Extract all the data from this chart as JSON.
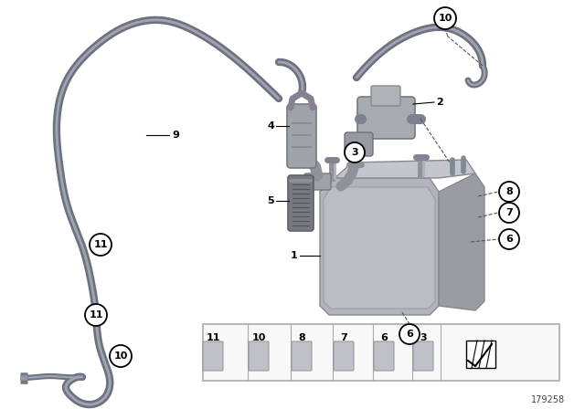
{
  "main_bg": "#ffffff",
  "hose_color": "#6e7280",
  "hose_highlight": "#a0a4b0",
  "hose_lw": 6.0,
  "part_color": "#aaaaB2",
  "part_dark": "#888890",
  "part_light": "#ccccD4",
  "ref_number": "179258",
  "label_circle_fc": "#ffffff",
  "label_circle_ec": "#000000",
  "dashed_color": "#555555",
  "legend_fc": "#f8f8f8",
  "legend_ec": "#aaaaaa",
  "legend_items": [
    "11",
    "10",
    "8",
    "7",
    "6",
    "3"
  ]
}
